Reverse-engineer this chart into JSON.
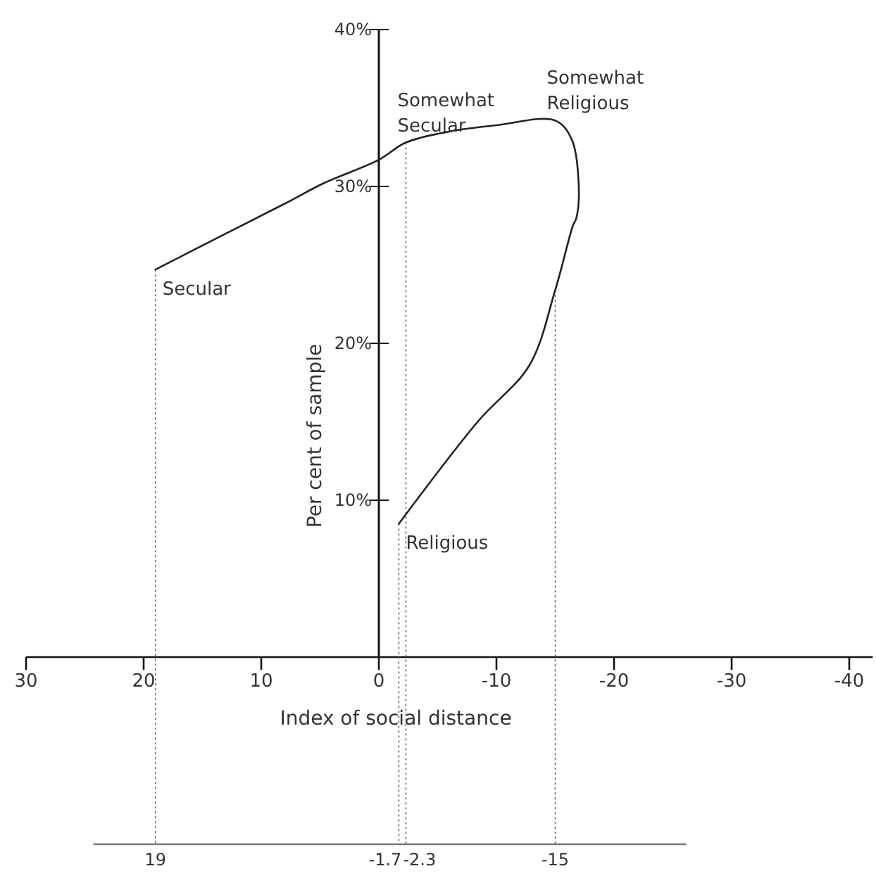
{
  "chart_data": {
    "type": "line",
    "xlabel": "Index of social distance",
    "ylabel": "Per cent of sample",
    "series": [
      {
        "color": "#222222",
        "x": [
          19,
          13,
          8,
          4.7,
          0,
          -2.3,
          -6,
          -10,
          -15,
          -16.4,
          -17,
          -16.8,
          -16.5,
          -15,
          -12.8,
          -8.4,
          -1.7
        ],
        "values": [
          24.7,
          27.0,
          28.9,
          30.2,
          31.7,
          32.8,
          33.5,
          33.9,
          34.2,
          33.0,
          30.0,
          28.0,
          27.5,
          23.4,
          18.6,
          15.0,
          8.5
        ]
      }
    ],
    "xlim": [
      30,
      -42
    ],
    "xticks": [
      30,
      20,
      10,
      0,
      -10,
      -20,
      -30,
      -40
    ],
    "ylim": [
      0,
      40
    ],
    "yticks": [
      {
        "value": 10,
        "label": "10%"
      },
      {
        "value": 20,
        "label": "20%"
      },
      {
        "value": 30,
        "label": "30%"
      },
      {
        "value": 40,
        "label": "40%"
      }
    ],
    "ref_lines": [
      {
        "axis": "x",
        "value": 19,
        "label": "19",
        "line_style": "dotted"
      },
      {
        "axis": "x",
        "value": -1.7,
        "label": "-1.7",
        "line_style": "dotted"
      },
      {
        "axis": "x",
        "value": -2.3,
        "label": "-2.3",
        "line_style": "dotted"
      },
      {
        "axis": "x",
        "value": -15,
        "label": "-15",
        "line_style": "dotted"
      }
    ],
    "annotations": [
      {
        "text": "Secular",
        "x": 19,
        "y": 24.7
      },
      {
        "text": "Somewhat\nSecular",
        "x": -2.3,
        "y": 32.8
      },
      {
        "text": "Somewhat\nReligious",
        "x": -15,
        "y": 34.2
      },
      {
        "text": "Religious",
        "x": -1.7,
        "y": 8.5
      }
    ],
    "grid": false,
    "marker": "none",
    "line_style": "solid"
  }
}
